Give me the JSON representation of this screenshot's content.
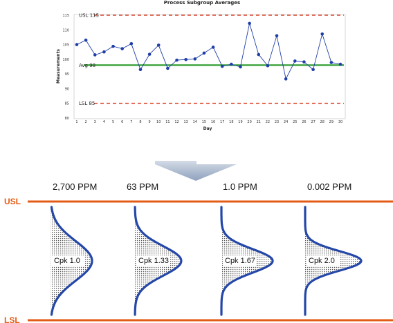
{
  "colors": {
    "series": "#1f3ea8",
    "spec_limit_dashed": "#d9452b",
    "average": "#2f9e2f",
    "spec_line": "#e35b14",
    "bell_curve": "#2447a8",
    "arrow": "#9fb0c9"
  },
  "chart_data": [
    {
      "type": "line",
      "title": "Process Subgroup Averages",
      "xlabel": "Day",
      "ylabel": "Measurements",
      "x": [
        1,
        2,
        3,
        4,
        5,
        6,
        7,
        8,
        9,
        10,
        11,
        12,
        13,
        14,
        15,
        16,
        17,
        18,
        19,
        20,
        21,
        22,
        23,
        24,
        25,
        26,
        27,
        28,
        29,
        30
      ],
      "series": [
        {
          "values": [
            105,
            106.5,
            101.5,
            102.5,
            104.4,
            103.6,
            105.3,
            96.5,
            101.7,
            104.8,
            96.9,
            99.7,
            99.9,
            100.1,
            102.1,
            104.1,
            97.6,
            98.3,
            97.4,
            112.2,
            101.6,
            97.8,
            108,
            93.3,
            99.4,
            99.1,
            96.5,
            108.6,
            98.9,
            98.3
          ]
        }
      ],
      "reference_lines": [
        {
          "label": "USL 115",
          "value": 115
        },
        {
          "label": "Avg 98",
          "value": 98
        },
        {
          "label": "LSL 85",
          "value": 85
        }
      ],
      "ylim": [
        80,
        115
      ],
      "y_ticks": [
        "80",
        "85",
        "90",
        "95",
        "100",
        "105",
        "110",
        "115"
      ],
      "x_ticks": [
        "1",
        "2",
        "3",
        "4",
        "5",
        "6",
        "7",
        "8",
        "9",
        "10",
        "11",
        "12",
        "13",
        "14",
        "15",
        "16",
        "17",
        "18",
        "19",
        "20",
        "21",
        "22",
        "23",
        "24",
        "25",
        "26",
        "27",
        "28",
        "29",
        "30"
      ]
    },
    {
      "type": "area",
      "spec_limits": [
        "USL",
        "LSL"
      ],
      "distributions": [
        {
          "ppm": "2,700 PPM",
          "cpk_label": "Cpk 1.0",
          "cpk": 1.0
        },
        {
          "ppm": "63 PPM",
          "cpk_label": "Cpk 1.33",
          "cpk": 1.33
        },
        {
          "ppm": "1.0 PPM",
          "cpk_label": "Cpk 1.67",
          "cpk": 1.67
        },
        {
          "ppm": "0.002 PPM",
          "cpk_label": "Cpk 2.0",
          "cpk": 2.0
        }
      ]
    }
  ]
}
